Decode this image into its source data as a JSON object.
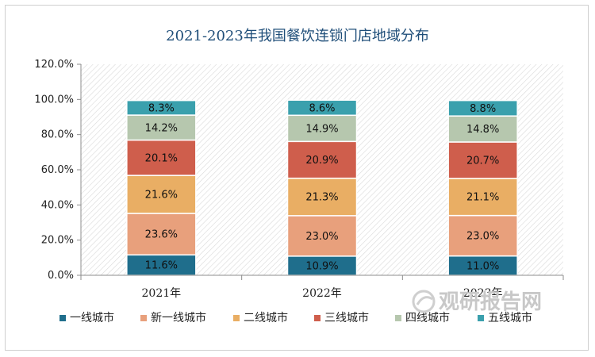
{
  "chart_data": {
    "type": "bar",
    "stacked": true,
    "title": "2021-2023年我国餐饮连锁门店地域分布",
    "categories": [
      "2021年",
      "2022年",
      "2023年"
    ],
    "ylim": [
      0,
      120
    ],
    "yticks": [
      "0.0%",
      "20.0%",
      "40.0%",
      "60.0%",
      "80.0%",
      "100.0%",
      "120.0%"
    ],
    "legend_position": "bottom",
    "series": [
      {
        "name": "一线城市",
        "color": "#1f6e8c",
        "values": [
          11.6,
          10.9,
          11.0
        ],
        "labels": [
          "11.6%",
          "10.9%",
          "11.0%"
        ]
      },
      {
        "name": "新一线城市",
        "color": "#e8a07c",
        "values": [
          23.6,
          23.0,
          23.0
        ],
        "labels": [
          "23.6%",
          "23.0%",
          "23.0%"
        ]
      },
      {
        "name": "二线城市",
        "color": "#e9ae64",
        "values": [
          21.6,
          21.3,
          21.1
        ],
        "labels": [
          "21.6%",
          "21.3%",
          "21.1%"
        ]
      },
      {
        "name": "三线城市",
        "color": "#cf5e4c",
        "values": [
          20.1,
          20.9,
          20.7
        ],
        "labels": [
          "20.1%",
          "20.9%",
          "20.7%"
        ]
      },
      {
        "name": "四线城市",
        "color": "#b6c7ae",
        "values": [
          14.2,
          14.9,
          14.8
        ],
        "labels": [
          "14.2%",
          "14.9%",
          "14.8%"
        ]
      },
      {
        "name": "五线城市",
        "color": "#3aa0ad",
        "values": [
          8.3,
          8.6,
          8.8
        ],
        "labels": [
          "8.3%",
          "8.6%",
          "8.8%"
        ]
      }
    ]
  },
  "watermark": {
    "text": "观研报告网"
  }
}
